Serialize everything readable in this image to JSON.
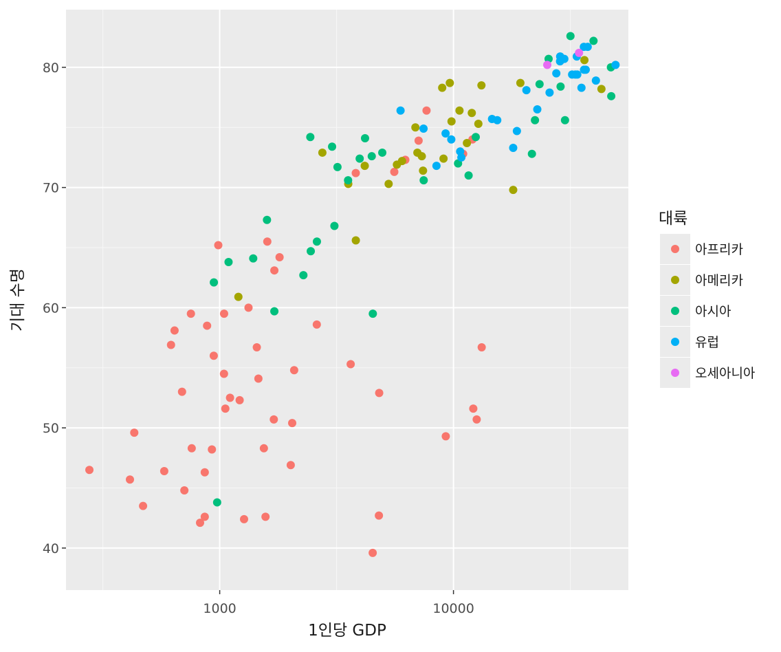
{
  "chart_data": {
    "type": "scatter",
    "x_scale": "log10",
    "xlabel": "1인당 GDP",
    "ylabel": "기대 수명",
    "xlim": [
      220,
      56000
    ],
    "ylim": [
      36.5,
      84.8
    ],
    "x_ticks": [
      {
        "value": 1000,
        "label": "1000"
      },
      {
        "value": 10000,
        "label": "10000"
      }
    ],
    "y_ticks": [
      {
        "value": 40,
        "label": "40"
      },
      {
        "value": 50,
        "label": "50"
      },
      {
        "value": 60,
        "label": "60"
      },
      {
        "value": 70,
        "label": "70"
      },
      {
        "value": 80,
        "label": "80"
      }
    ],
    "grid": true,
    "legend": {
      "title": "대륙",
      "position": "right"
    },
    "series": [
      {
        "name": "아프리카",
        "color": "#F8766D",
        "points": [
          [
            277,
            46.5
          ],
          [
            413,
            45.7
          ],
          [
            431,
            49.6
          ],
          [
            470,
            43.5
          ],
          [
            579,
            46.4
          ],
          [
            619,
            56.9
          ],
          [
            641,
            58.1
          ],
          [
            690,
            53.0
          ],
          [
            706,
            44.8
          ],
          [
            753,
            59.5
          ],
          [
            759,
            48.3
          ],
          [
            824,
            42.1
          ],
          [
            863,
            42.6
          ],
          [
            863,
            46.3
          ],
          [
            883,
            58.5
          ],
          [
            926,
            48.2
          ],
          [
            943,
            56.0
          ],
          [
            986,
            65.2
          ],
          [
            1043,
            54.5
          ],
          [
            1044,
            59.5
          ],
          [
            1057,
            51.6
          ],
          [
            1107,
            52.5
          ],
          [
            1217,
            52.3
          ],
          [
            1271,
            42.4
          ],
          [
            1328,
            60.0
          ],
          [
            1441,
            56.7
          ],
          [
            1464,
            54.1
          ],
          [
            1545,
            48.3
          ],
          [
            1570,
            42.6
          ],
          [
            1598,
            65.5
          ],
          [
            1704,
            50.7
          ],
          [
            1713,
            63.1
          ],
          [
            1803,
            64.2
          ],
          [
            2013,
            46.9
          ],
          [
            2042,
            50.4
          ],
          [
            2082,
            54.8
          ],
          [
            2602,
            58.6
          ],
          [
            3633,
            55.3
          ],
          [
            3820,
            71.2
          ],
          [
            4513,
            39.6
          ],
          [
            4797,
            42.7
          ],
          [
            4811,
            52.9
          ],
          [
            5582,
            71.3
          ],
          [
            6223,
            72.3
          ],
          [
            7093,
            73.9
          ],
          [
            7670,
            76.4
          ],
          [
            9270,
            49.3
          ],
          [
            11000,
            72.8
          ],
          [
            12057,
            74.0
          ],
          [
            12154,
            51.6
          ],
          [
            12570,
            50.7
          ],
          [
            13206,
            56.7
          ]
        ]
      },
      {
        "name": "아메리카",
        "color": "#A3A500",
        "points": [
          [
            1202,
            60.9
          ],
          [
            2749,
            72.9
          ],
          [
            3548,
            70.3
          ],
          [
            3822,
            65.6
          ],
          [
            4173,
            71.8
          ],
          [
            5280,
            70.3
          ],
          [
            5728,
            71.9
          ],
          [
            6025,
            72.2
          ],
          [
            6873,
            75.0
          ],
          [
            7008,
            72.9
          ],
          [
            7320,
            72.6
          ],
          [
            7409,
            71.4
          ],
          [
            8948,
            78.3
          ],
          [
            9066,
            72.4
          ],
          [
            9645,
            78.7
          ],
          [
            9809,
            75.5
          ],
          [
            10611,
            76.4
          ],
          [
            11416,
            73.7
          ],
          [
            11978,
            76.2
          ],
          [
            12779,
            75.3
          ],
          [
            13172,
            78.5
          ],
          [
            18009,
            69.8
          ],
          [
            19329,
            78.7
          ],
          [
            36319,
            80.6
          ],
          [
            42952,
            78.2
          ]
        ]
      },
      {
        "name": "아시아",
        "color": "#00BF7D",
        "points": [
          [
            944,
            62.1
          ],
          [
            975,
            43.8
          ],
          [
            1091,
            63.8
          ],
          [
            1391,
            64.1
          ],
          [
            1593,
            67.3
          ],
          [
            1713,
            59.7
          ],
          [
            2280,
            62.7
          ],
          [
            2452,
            64.7
          ],
          [
            2441,
            74.2
          ],
          [
            2605,
            65.5
          ],
          [
            3025,
            73.4
          ],
          [
            3095,
            66.8
          ],
          [
            3190,
            71.7
          ],
          [
            3541,
            70.6
          ],
          [
            3970,
            72.4
          ],
          [
            4185,
            74.1
          ],
          [
            4471,
            72.6
          ],
          [
            4519,
            59.5
          ],
          [
            4959,
            72.9
          ],
          [
            7458,
            70.6
          ],
          [
            10461,
            72.0
          ],
          [
            11606,
            71.0
          ],
          [
            12452,
            74.2
          ],
          [
            21655,
            72.8
          ],
          [
            22316,
            75.6
          ],
          [
            23348,
            78.6
          ],
          [
            25524,
            80.7
          ],
          [
            28718,
            78.4
          ],
          [
            30000,
            75.6
          ],
          [
            31656,
            82.6
          ],
          [
            39725,
            82.2
          ],
          [
            47143,
            80.0
          ],
          [
            47307,
            77.6
          ]
        ]
      },
      {
        "name": "유럽",
        "color": "#00B0F6",
        "points": [
          [
            5937,
            76.4
          ],
          [
            7446,
            74.9
          ],
          [
            8458,
            71.8
          ],
          [
            9253,
            74.5
          ],
          [
            9787,
            74.0
          ],
          [
            10681,
            73.0
          ],
          [
            10808,
            72.5
          ],
          [
            14619,
            75.7
          ],
          [
            15390,
            75.6
          ],
          [
            18008,
            73.3
          ],
          [
            18678,
            74.7
          ],
          [
            20510,
            78.1
          ],
          [
            22833,
            76.5
          ],
          [
            25768,
            77.9
          ],
          [
            27538,
            79.5
          ],
          [
            28570,
            80.5
          ],
          [
            28604,
            80.9
          ],
          [
            29796,
            80.7
          ],
          [
            32170,
            79.4
          ],
          [
            33207,
            79.4
          ],
          [
            33692,
            80.9
          ],
          [
            33860,
            79.4
          ],
          [
            35278,
            78.3
          ],
          [
            36126,
            81.7
          ],
          [
            36181,
            79.8
          ],
          [
            36798,
            79.8
          ],
          [
            37506,
            81.7
          ],
          [
            40676,
            78.9
          ],
          [
            49357,
            80.2
          ]
        ]
      },
      {
        "name": "오세아니아",
        "color": "#E76BF3",
        "points": [
          [
            25185,
            80.2
          ],
          [
            34435,
            81.2
          ]
        ]
      }
    ]
  }
}
